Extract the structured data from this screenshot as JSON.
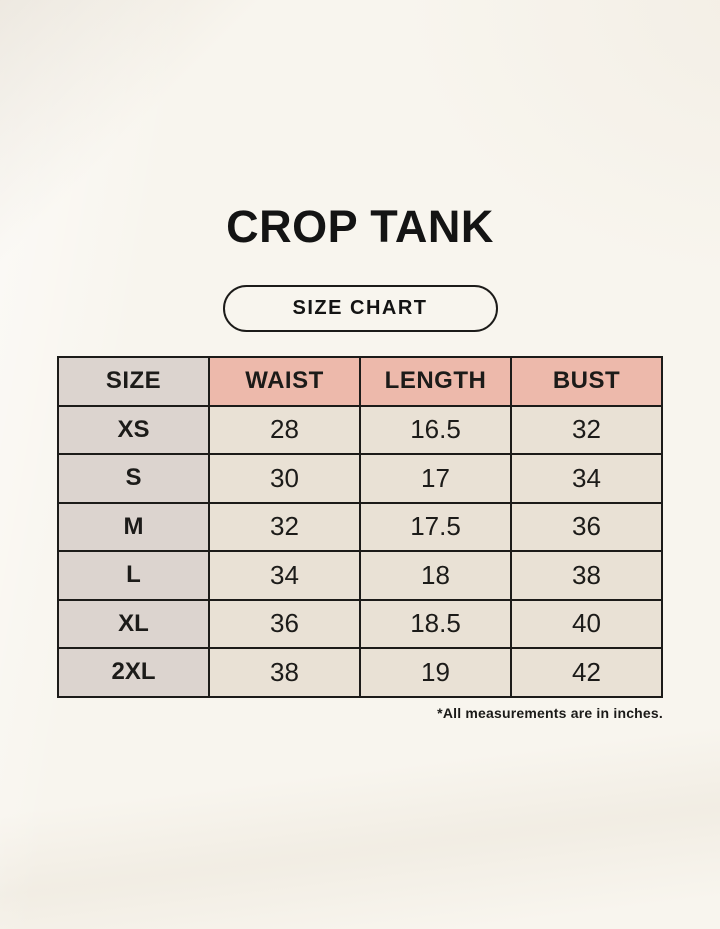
{
  "page": {
    "title": "CROP TANK",
    "badge_label": "SIZE CHART",
    "footnote": "*All measurements are in inches."
  },
  "table": {
    "columns": [
      "SIZE",
      "WAIST",
      "LENGTH",
      "BUST"
    ],
    "rows": [
      {
        "size": "XS",
        "waist": "28",
        "length": "16.5",
        "bust": "32"
      },
      {
        "size": "S",
        "waist": "30",
        "length": "17",
        "bust": "34"
      },
      {
        "size": "M",
        "waist": "32",
        "length": "17.5",
        "bust": "36"
      },
      {
        "size": "L",
        "waist": "34",
        "length": "18",
        "bust": "38"
      },
      {
        "size": "XL",
        "waist": "36",
        "length": "18.5",
        "bust": "40"
      },
      {
        "size": "2XL",
        "waist": "38",
        "length": "19",
        "bust": "42"
      }
    ]
  },
  "colors": {
    "bg": "#f8f5ee",
    "pink": "#edb9ab",
    "gray": "#dcd4cf",
    "beige": "#e9e1d5",
    "ink": "#1c1b19"
  }
}
